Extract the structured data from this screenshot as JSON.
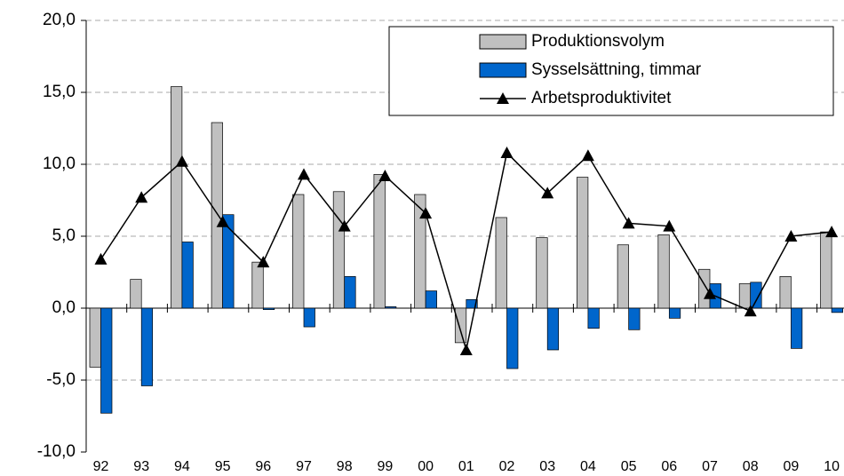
{
  "chart_data": {
    "type": "bar-line",
    "categories": [
      "92",
      "93",
      "94",
      "95",
      "96",
      "97",
      "98",
      "99",
      "00",
      "01",
      "02",
      "03",
      "04",
      "05",
      "06",
      "07",
      "08",
      "09",
      "10"
    ],
    "series": [
      {
        "name": "Produktionsvolym",
        "type": "bar",
        "color": "#c0c0c0",
        "values": [
          -4.1,
          2.0,
          15.4,
          12.9,
          3.2,
          7.9,
          8.1,
          9.3,
          7.9,
          -2.4,
          6.3,
          4.9,
          9.1,
          4.4,
          5.1,
          2.7,
          1.7,
          2.2,
          5.3
        ]
      },
      {
        "name": "Sysselsättning, timmar",
        "type": "bar",
        "color": "#0066cc",
        "values": [
          -7.3,
          -5.4,
          4.6,
          6.5,
          -0.1,
          -1.3,
          2.2,
          0.1,
          1.2,
          0.6,
          -4.2,
          -2.9,
          -1.4,
          -1.5,
          -0.7,
          1.7,
          1.8,
          -2.8,
          -0.3
        ]
      },
      {
        "name": "Arbetsproduktivitet",
        "type": "line",
        "color": "#000000",
        "values": [
          3.4,
          7.7,
          10.2,
          6.0,
          3.2,
          9.3,
          5.7,
          9.2,
          6.6,
          -2.9,
          10.8,
          8.0,
          10.6,
          5.9,
          5.7,
          1.0,
          -0.2,
          5.0,
          5.3
        ]
      }
    ],
    "ylim": [
      -10,
      20
    ],
    "yticks": [
      {
        "value": -10,
        "label": "-10,0"
      },
      {
        "value": -5,
        "label": "-5,0"
      },
      {
        "value": 0,
        "label": "0,0"
      },
      {
        "value": 5,
        "label": "5,0"
      },
      {
        "value": 10,
        "label": "10,0"
      },
      {
        "value": 15,
        "label": "15,0"
      },
      {
        "value": 20,
        "label": "20,0"
      }
    ],
    "grid": true,
    "legend": "top-right"
  }
}
